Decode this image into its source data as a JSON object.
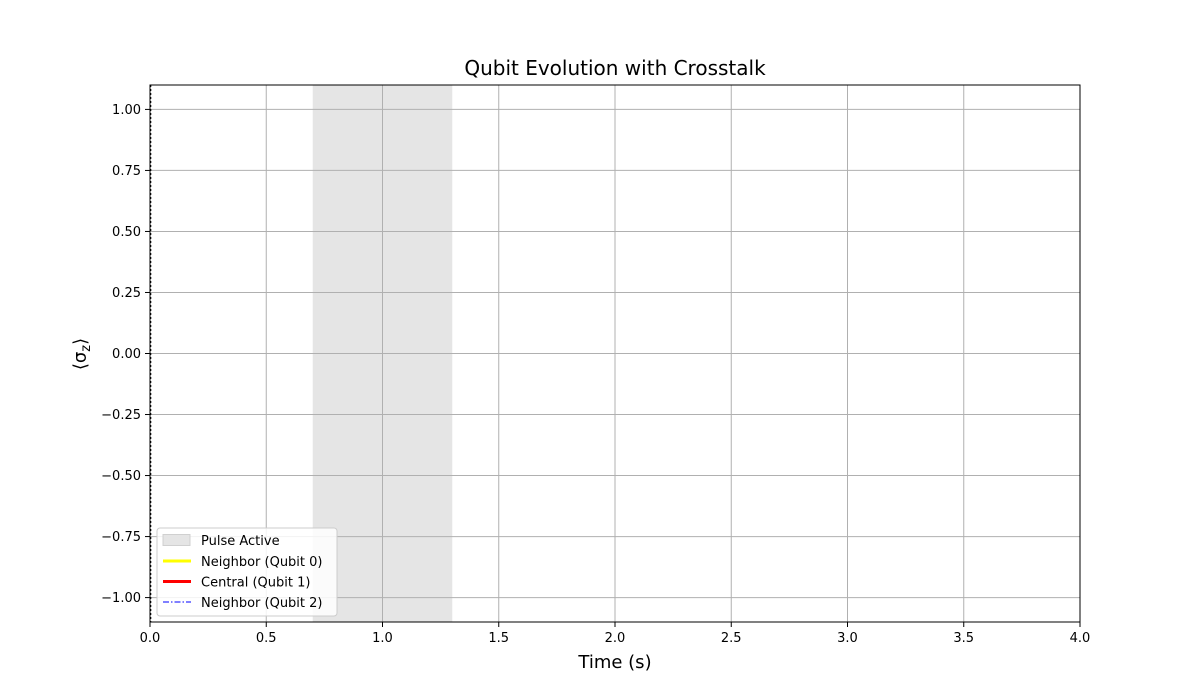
{
  "chart_data": {
    "type": "line",
    "title": "Qubit Evolution with Crosstalk",
    "xlabel": "Time (s)",
    "ylabel_base": "⟨σ",
    "ylabel_sub": "z",
    "ylabel_close": "⟩",
    "xlim": [
      0.0,
      4.0
    ],
    "ylim": [
      -1.1,
      1.1
    ],
    "xticks": [
      0.0,
      0.5,
      1.0,
      1.5,
      2.0,
      2.5,
      3.0,
      3.5,
      4.0
    ],
    "xtick_labels": [
      "0.0",
      "0.5",
      "1.0",
      "1.5",
      "2.0",
      "2.5",
      "3.0",
      "3.5",
      "4.0"
    ],
    "yticks": [
      1.0,
      0.75,
      0.5,
      0.25,
      0.0,
      -0.25,
      -0.5,
      -0.75,
      -1.0
    ],
    "ytick_labels": [
      "1.00",
      "0.75",
      "0.50",
      "0.25",
      "0.00",
      "−0.25",
      "−0.50",
      "−0.75",
      "−1.00"
    ],
    "grid": true,
    "legend_position": "lower-left",
    "pulse_span": {
      "name": "Pulse Active",
      "x_start": 0.7,
      "x_end": 1.3,
      "color": "#e5e5e5"
    },
    "series": [
      {
        "name": "Neighbor (Qubit 0)",
        "color": "#ffff00",
        "style": "solid",
        "x": [],
        "values": []
      },
      {
        "name": "Central (Qubit 1)",
        "color": "#ff0000",
        "style": "solid",
        "x": [],
        "values": []
      },
      {
        "name": "Neighbor (Qubit 2)",
        "color": "#0000ff",
        "style": "dashdot",
        "x": [],
        "values": []
      }
    ]
  }
}
